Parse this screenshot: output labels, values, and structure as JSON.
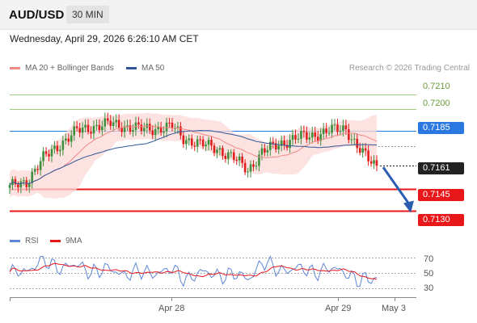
{
  "header": {
    "symbol": "AUD/USD",
    "timeframe": "30 MIN"
  },
  "datetime": "Wednesday, April 29, 2026 6:26:10 AM CET",
  "legend": {
    "ma20": "MA 20 + Bollinger Bands",
    "ma50": "MA 50",
    "rsi": "RSI",
    "ma9": "9MA",
    "colors": {
      "ma20": "#f08a88",
      "ma50": "#2f5597",
      "rsi": "#5f86d6",
      "ma9": "#e8171a"
    }
  },
  "credit": "Research © 2026 Trading Central",
  "chart_data": {
    "type": "candlestick",
    "ylim": [
      0.7118,
      0.7222
    ],
    "levels": [
      {
        "value": 0.721,
        "label": "0.7210",
        "kind": "target",
        "color": "#8cc26a"
      },
      {
        "value": 0.72,
        "label": "0.7200",
        "kind": "target",
        "color": "#8cc26a"
      },
      {
        "value": 0.7185,
        "label": "0.7185",
        "kind": "pivot",
        "color": "#2b79e0"
      },
      {
        "value": 0.7161,
        "label": "0.7161",
        "kind": "last",
        "color": "#222222"
      },
      {
        "value": 0.7145,
        "label": "0.7145",
        "kind": "support",
        "color": "#e8171a"
      },
      {
        "value": 0.713,
        "label": "0.7130",
        "kind": "support",
        "color": "#e8171a"
      }
    ],
    "x_ticks": [
      "Apr 28",
      "Apr 29",
      "May 3"
    ],
    "rsi_ticks": [
      70,
      50,
      30
    ],
    "rsi_range": [
      20,
      80
    ],
    "forecast": {
      "from": 0.7161,
      "to": 0.713,
      "direction": "down"
    }
  }
}
